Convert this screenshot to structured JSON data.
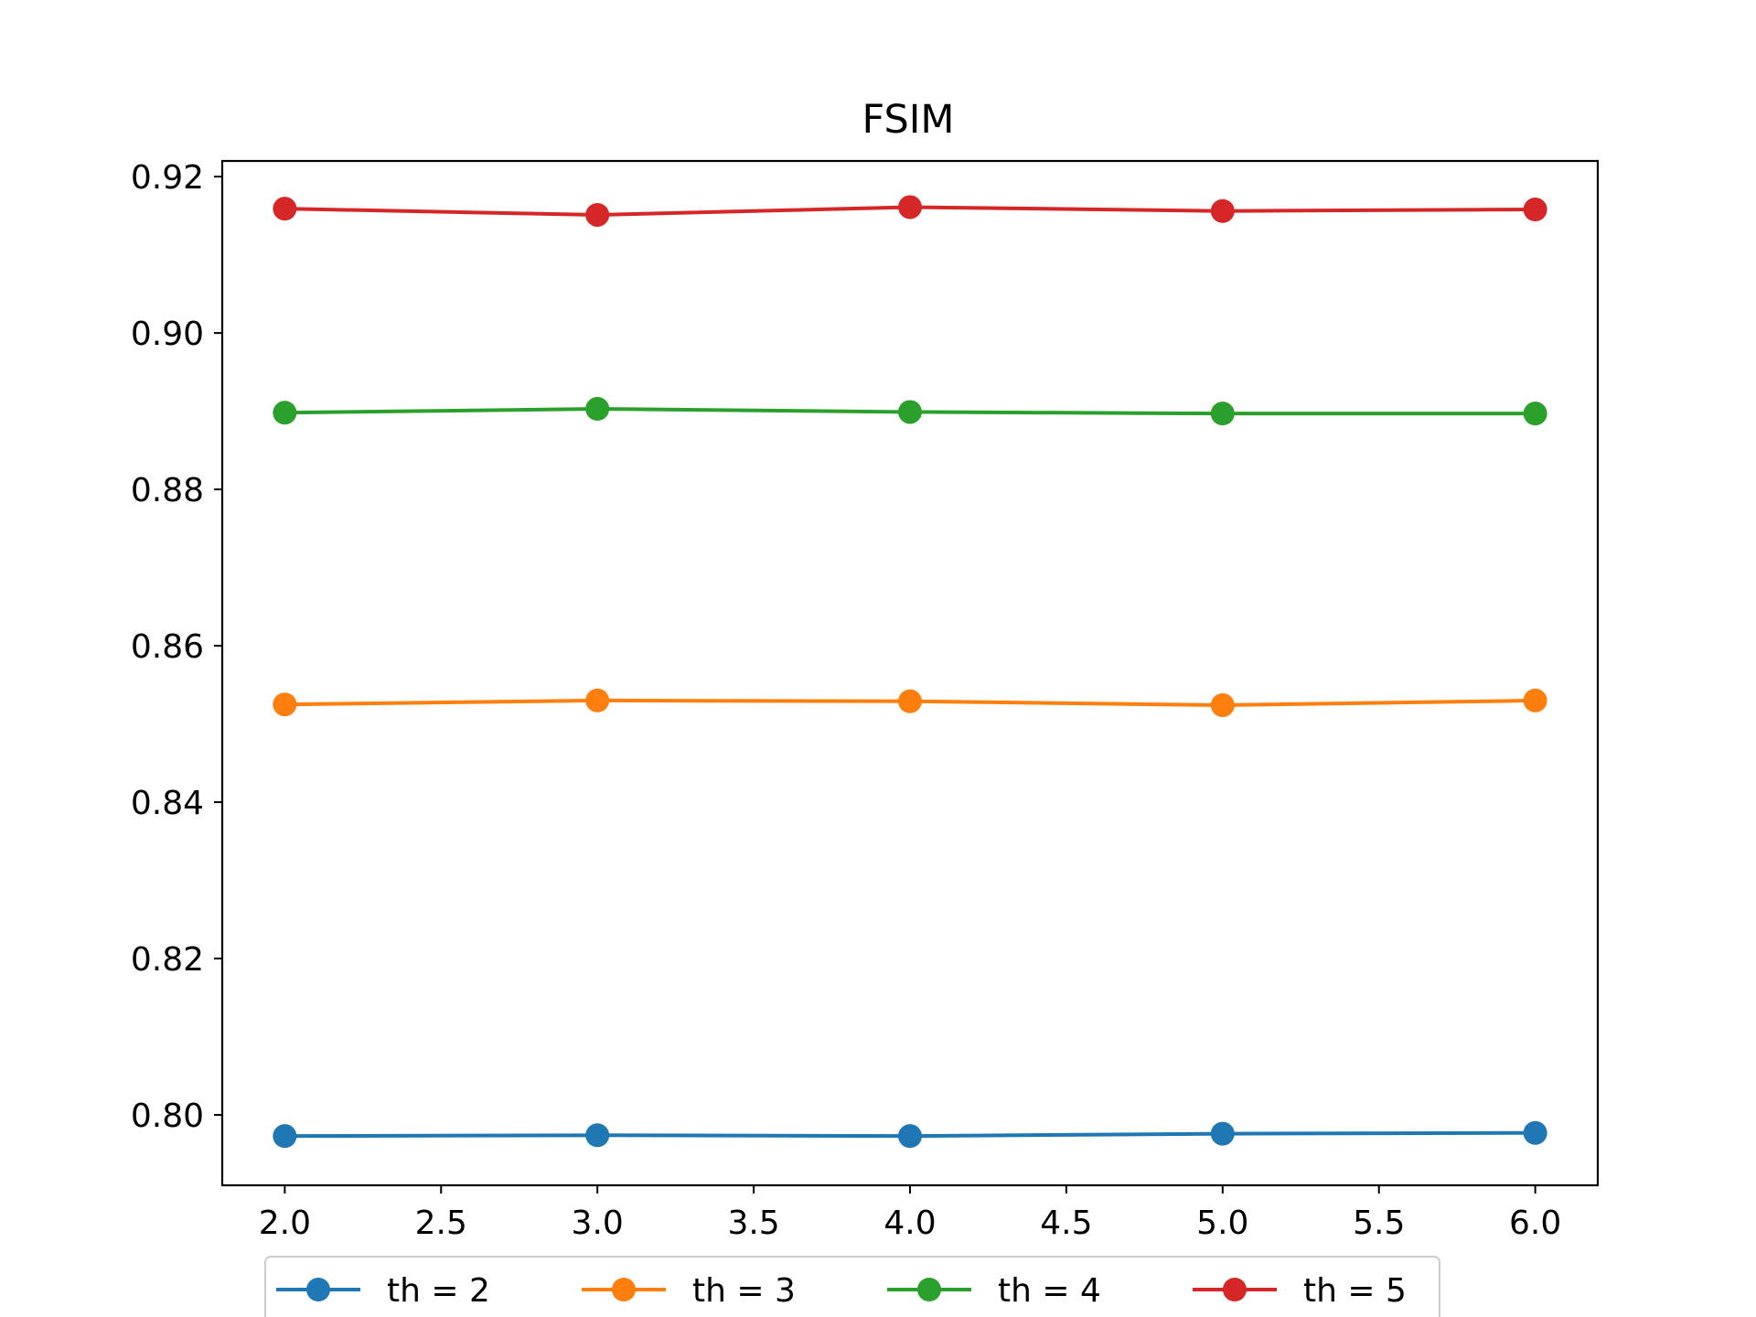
{
  "chart_data": {
    "type": "line",
    "title": "FSIM",
    "xlabel": "",
    "ylabel": "",
    "x": [
      2.0,
      3.0,
      4.0,
      5.0,
      6.0
    ],
    "xlim": [
      1.8,
      6.2
    ],
    "ylim": [
      0.791,
      0.922
    ],
    "xticks": [
      2.0,
      2.5,
      3.0,
      3.5,
      4.0,
      4.5,
      5.0,
      5.5,
      6.0
    ],
    "xtick_labels": [
      "2.0",
      "2.5",
      "3.0",
      "3.5",
      "4.0",
      "4.5",
      "5.0",
      "5.5",
      "6.0"
    ],
    "yticks": [
      0.8,
      0.82,
      0.84,
      0.86,
      0.88,
      0.9,
      0.92
    ],
    "ytick_labels": [
      "0.80",
      "0.82",
      "0.84",
      "0.86",
      "0.88",
      "0.90",
      "0.92"
    ],
    "grid": false,
    "legend_position": "bottom-center, below axes",
    "series": [
      {
        "name": "th = 2",
        "color": "#1f77b4",
        "values": [
          0.7973,
          0.7974,
          0.7973,
          0.7976,
          0.7977
        ]
      },
      {
        "name": "th = 3",
        "color": "#ff7f0e",
        "values": [
          0.8525,
          0.853,
          0.8529,
          0.8524,
          0.853
        ]
      },
      {
        "name": "th = 4",
        "color": "#2ca02c",
        "values": [
          0.8898,
          0.8903,
          0.8899,
          0.8897,
          0.8897
        ]
      },
      {
        "name": "th = 5",
        "color": "#d62728",
        "values": [
          0.9159,
          0.9151,
          0.9161,
          0.9156,
          0.9158
        ]
      }
    ]
  }
}
